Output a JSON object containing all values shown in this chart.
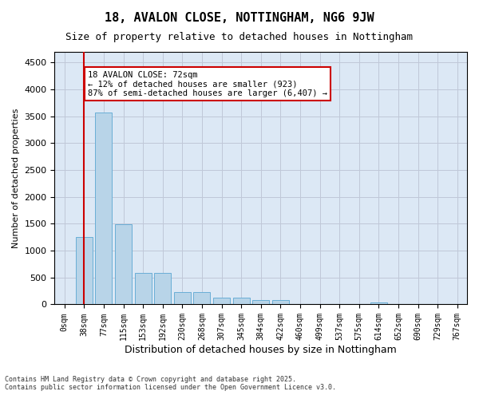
{
  "title_line1": "18, AVALON CLOSE, NOTTINGHAM, NG6 9JW",
  "title_line2": "Size of property relative to detached houses in Nottingham",
  "xlabel": "Distribution of detached houses by size in Nottingham",
  "ylabel": "Number of detached properties",
  "bar_color": "#b8d4e8",
  "bar_edge_color": "#6aaed6",
  "grid_color": "#c0c8d8",
  "background_color": "#dce8f5",
  "annotation_box_color": "#cc0000",
  "vline_color": "#cc0000",
  "bin_labels": [
    "0sqm",
    "38sqm",
    "77sqm",
    "115sqm",
    "153sqm",
    "192sqm",
    "230sqm",
    "268sqm",
    "307sqm",
    "345sqm",
    "384sqm",
    "422sqm",
    "460sqm",
    "499sqm",
    "537sqm",
    "575sqm",
    "614sqm",
    "652sqm",
    "690sqm",
    "729sqm",
    "767sqm"
  ],
  "bar_values": [
    10,
    1260,
    3570,
    1490,
    590,
    590,
    230,
    230,
    130,
    130,
    75,
    80,
    0,
    0,
    0,
    0,
    30,
    0,
    0,
    0,
    0
  ],
  "ylim": [
    0,
    4700
  ],
  "yticks": [
    0,
    500,
    1000,
    1500,
    2000,
    2500,
    3000,
    3500,
    4000,
    4500
  ],
  "property_size": 72,
  "property_bin_index": 1,
  "annotation_text": "18 AVALON CLOSE: 72sqm\n← 12% of detached houses are smaller (923)\n87% of semi-detached houses are larger (6,407) →",
  "footnote1": "Contains HM Land Registry data © Crown copyright and database right 2025.",
  "footnote2": "Contains public sector information licensed under the Open Government Licence v3.0."
}
